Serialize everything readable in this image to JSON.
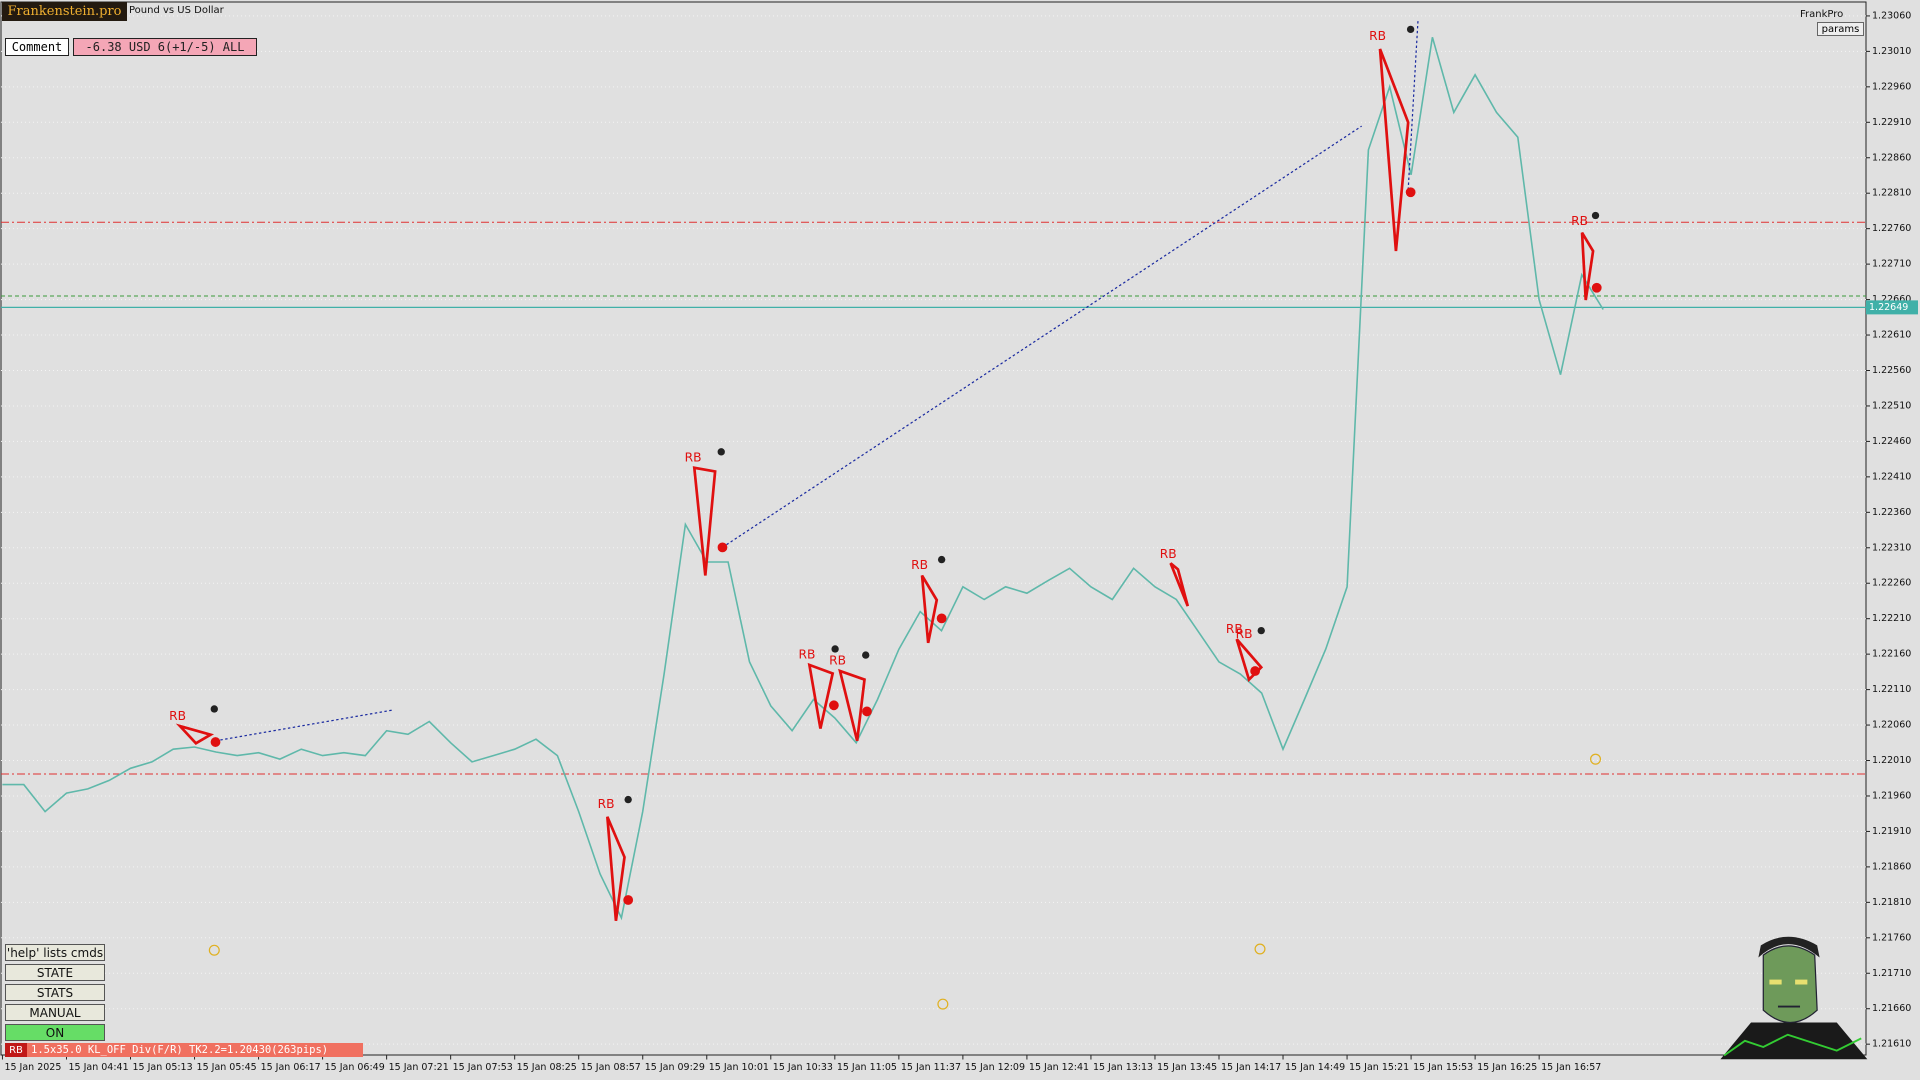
{
  "ui": {
    "brand": "Frankenstein.pro",
    "symbol": "Pound vs US Dollar",
    "comment_label": "Comment",
    "comment_value": "-6.38 USD 6(+1/-5) ALL",
    "user": "FrankPro",
    "params_button": "params",
    "buttons": [
      "'help' lists cmds",
      "STATE",
      "STATS",
      "MANUAL",
      "ON"
    ],
    "status_tag": "RB",
    "status_text": "1.5x35.0 KL_OFF Div(F/R) TK2.2=1.20430(263pips)"
  },
  "chart_data": {
    "type": "line",
    "categories": [
      "15 Jan 2025",
      null,
      null,
      "15 Jan 04:41",
      null,
      null,
      "15 Jan 05:13",
      null,
      null,
      "15 Jan 05:45",
      null,
      null,
      "15 Jan 06:17",
      null,
      null,
      "15 Jan 06:49",
      null,
      null,
      "15 Jan 07:21",
      null,
      null,
      "15 Jan 07:53",
      null,
      null,
      "15 Jan 08:25",
      null,
      null,
      "15 Jan 08:57",
      null,
      null,
      "15 Jan 09:29",
      null,
      null,
      "15 Jan 10:01",
      null,
      null,
      "15 Jan 10:33",
      null,
      null,
      "15 Jan 11:05",
      null,
      null,
      "15 Jan 11:37",
      null,
      null,
      "15 Jan 12:09",
      null,
      null,
      "15 Jan 12:41",
      null,
      null,
      "15 Jan 13:13",
      null,
      null,
      "15 Jan 13:45",
      null,
      null,
      "15 Jan 14:17",
      null,
      null,
      "15 Jan 14:49",
      null,
      null,
      "15 Jan 15:21",
      null,
      null,
      "15 Jan 15:53",
      null,
      null,
      "15 Jan 16:25",
      null,
      null,
      "15 Jan 16:57",
      null,
      null,
      null
    ],
    "series": [
      {
        "color": "#5fb8aa",
        "values": [
          1.21976,
          1.21976,
          1.21938,
          1.21964,
          1.2197,
          1.21982,
          1.21999,
          1.22008,
          1.22026,
          1.22029,
          1.22022,
          1.22017,
          1.22021,
          1.22012,
          1.22026,
          1.22017,
          1.22021,
          1.22017,
          1.22052,
          1.22047,
          1.22065,
          1.22035,
          1.22008,
          1.22017,
          1.22026,
          1.2204,
          1.22017,
          1.21938,
          1.2185,
          1.21788,
          1.21938,
          1.22132,
          1.22343,
          1.2229,
          1.2229,
          1.22149,
          1.22087,
          1.22052,
          1.22096,
          1.2207,
          1.22035,
          1.22096,
          1.22167,
          1.2222,
          1.22193,
          1.22255,
          1.22237,
          1.22255,
          1.22246,
          1.22264,
          1.22281,
          1.22255,
          1.22237,
          1.22281,
          1.22255,
          1.22237,
          1.22193,
          1.22149,
          1.22132,
          1.22105,
          1.22026,
          1.22096,
          1.22167,
          1.22255,
          1.22871,
          1.2296,
          1.22836,
          1.2303,
          1.22924,
          1.22977,
          1.22924,
          1.22889,
          1.2266,
          1.22554,
          1.22695,
          1.22646
        ]
      }
    ],
    "ylim": [
      1.21594,
      1.23079
    ],
    "yticks": [
      {
        "value": 1.2306,
        "label": "1.23060"
      },
      {
        "value": 1.2301,
        "label": "1.23010"
      },
      {
        "value": 1.2296,
        "label": "1.22960"
      },
      {
        "value": 1.2291,
        "label": "1.22910"
      },
      {
        "value": 1.2286,
        "label": "1.22860"
      },
      {
        "value": 1.2281,
        "label": "1.22810"
      },
      {
        "value": 1.2276,
        "label": "1.22760"
      },
      {
        "value": 1.2271,
        "label": "1.22710"
      },
      {
        "value": 1.2266,
        "label": "1.22660"
      },
      {
        "value": 1.2261,
        "label": "1.22610"
      },
      {
        "value": 1.2256,
        "label": "1.22560"
      },
      {
        "value": 1.2251,
        "label": "1.22510"
      },
      {
        "value": 1.2246,
        "label": "1.22460"
      },
      {
        "value": 1.2241,
        "label": "1.22410"
      },
      {
        "value": 1.2236,
        "label": "1.22360"
      },
      {
        "value": 1.2231,
        "label": "1.22310"
      },
      {
        "value": 1.2226,
        "label": "1.22260"
      },
      {
        "value": 1.2221,
        "label": "1.22210"
      },
      {
        "value": 1.2216,
        "label": "1.22160"
      },
      {
        "value": 1.2211,
        "label": "1.22110"
      },
      {
        "value": 1.2206,
        "label": "1.22060"
      },
      {
        "value": 1.2201,
        "label": "1.22010"
      },
      {
        "value": 1.2196,
        "label": "1.21960"
      },
      {
        "value": 1.2191,
        "label": "1.21910"
      },
      {
        "value": 1.2186,
        "label": "1.21860"
      },
      {
        "value": 1.2181,
        "label": "1.21810"
      },
      {
        "value": 1.2176,
        "label": "1.21760"
      },
      {
        "value": 1.2171,
        "label": "1.21710"
      },
      {
        "value": 1.2166,
        "label": "1.21660"
      },
      {
        "value": 1.2161,
        "label": "1.21610"
      }
    ],
    "grid": true,
    "current_price": 1.22649,
    "levels": [
      {
        "value": 1.22769,
        "color": "#e03030",
        "style": "dash-dot"
      },
      {
        "value": 1.21991,
        "color": "#e03030",
        "style": "dash-dot"
      },
      {
        "value": 1.22665,
        "color": "#3a9a3a",
        "style": "dashed"
      }
    ],
    "annotations": [
      "RB",
      "RB",
      "RB",
      "RB",
      "RB",
      "RB",
      "RB",
      "RB",
      "RB",
      "RB",
      "RB"
    ]
  }
}
